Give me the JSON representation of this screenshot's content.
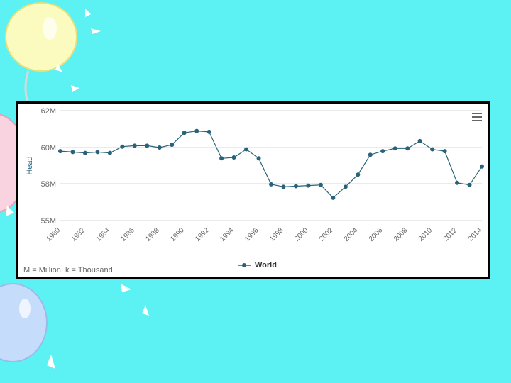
{
  "colors": {
    "background": "#5cf2f4",
    "series": "#2a6379",
    "grid": "#d6d6d6",
    "axis_text": "#666666"
  },
  "decorations": [
    "balloon-icon"
  ],
  "chart_data": {
    "type": "line",
    "ylabel": "Head",
    "ylim": [
      55,
      62
    ],
    "yticks": [
      55,
      58,
      60,
      62
    ],
    "ytick_labels": [
      "55M",
      "58M",
      "60M",
      "62M"
    ],
    "xtick_labels": [
      "1980",
      "1982",
      "1984",
      "1986",
      "1988",
      "1990",
      "1992",
      "1994",
      "1996",
      "1998",
      "2000",
      "2002",
      "2004",
      "2006",
      "2008",
      "2010",
      "2012",
      "2014"
    ],
    "grid": true,
    "legend_position": "bottom-center",
    "series": [
      {
        "name": "World",
        "x": [
          1980,
          1981,
          1982,
          1983,
          1984,
          1985,
          1986,
          1987,
          1988,
          1989,
          1990,
          1991,
          1992,
          1993,
          1994,
          1995,
          1996,
          1997,
          1998,
          1999,
          2000,
          2001,
          2002,
          2003,
          2004,
          2005,
          2006,
          2007,
          2008,
          2009,
          2010,
          2011,
          2012,
          2013,
          2014
        ],
        "values": [
          59.8,
          59.75,
          59.7,
          59.75,
          59.7,
          60.05,
          60.1,
          60.1,
          60.0,
          60.15,
          60.8,
          60.9,
          60.85,
          59.4,
          59.45,
          59.9,
          59.4,
          57.95,
          57.75,
          57.8,
          57.85,
          57.9,
          56.85,
          57.75,
          58.5,
          59.6,
          59.8,
          59.95,
          59.95,
          60.35,
          59.9,
          59.8,
          58.05,
          57.9,
          58.95
        ]
      }
    ]
  },
  "footnote": "M = Million, k = Thousand",
  "legend": {
    "label": "World"
  }
}
